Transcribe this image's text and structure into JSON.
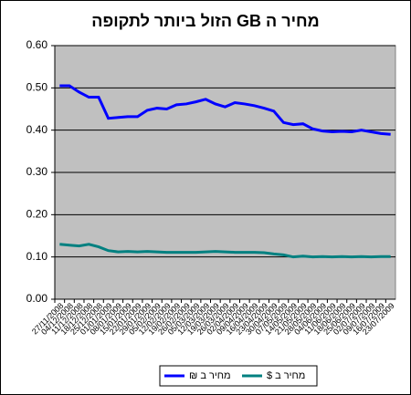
{
  "chart_data": {
    "type": "line",
    "title": "מחיר ה GB הזול ביותר לתקופה",
    "categories": [
      "27/11/2008",
      "04/12/2008",
      "11/12/2008",
      "18/12/2008",
      "25/12/2008",
      "01/01/2009",
      "08/01/2009",
      "15/01/2009",
      "22/01/2009",
      "29/01/2009",
      "05/02/2009",
      "12/02/2009",
      "19/02/2009",
      "26/02/2009",
      "05/03/2009",
      "12/03/2009",
      "19/03/2009",
      "26/03/2009",
      "02/04/2009",
      "09/04/2009",
      "16/04/2009",
      "23/04/2009",
      "30/04/2009",
      "07/05/2009",
      "14/05/2009",
      "21/05/2009",
      "28/05/2009",
      "04/06/2009",
      "11/06/2009",
      "18/06/2009",
      "25/06/2009",
      "02/07/2009",
      "09/07/2009",
      "16/07/2009",
      "23/07/2009"
    ],
    "series": [
      {
        "name": "מחיר ב $",
        "color": "#008080",
        "values": [
          0.13,
          0.128,
          0.126,
          0.13,
          0.124,
          0.115,
          0.112,
          0.113,
          0.112,
          0.113,
          0.112,
          0.111,
          0.111,
          0.111,
          0.111,
          0.112,
          0.113,
          0.112,
          0.111,
          0.111,
          0.111,
          0.11,
          0.107,
          0.105,
          0.1,
          0.102,
          0.1,
          0.101,
          0.1,
          0.101,
          0.1,
          0.101,
          0.1,
          0.101,
          0.101
        ]
      },
      {
        "name": "מחיר ב ₪",
        "color": "#0000ff",
        "values": [
          0.505,
          0.505,
          0.49,
          0.478,
          0.478,
          0.428,
          0.43,
          0.432,
          0.432,
          0.447,
          0.452,
          0.45,
          0.46,
          0.462,
          0.467,
          0.473,
          0.462,
          0.455,
          0.465,
          0.462,
          0.458,
          0.452,
          0.445,
          0.418,
          0.413,
          0.415,
          0.403,
          0.398,
          0.396,
          0.397,
          0.396,
          0.4,
          0.396,
          0.392,
          0.39
        ]
      }
    ],
    "ylim": [
      0,
      0.6
    ],
    "yticks": [
      {
        "value": 0,
        "label": "0.00"
      },
      {
        "value": 0.1,
        "label": "0.10"
      },
      {
        "value": 0.2,
        "label": "0.20"
      },
      {
        "value": 0.3,
        "label": "0.30"
      },
      {
        "value": 0.4,
        "label": "0.40"
      },
      {
        "value": 0.5,
        "label": "0.50"
      },
      {
        "value": 0.6,
        "label": "0.60"
      }
    ],
    "grid": true,
    "plot_background": "#c0c0c0",
    "legend": "bottom"
  }
}
